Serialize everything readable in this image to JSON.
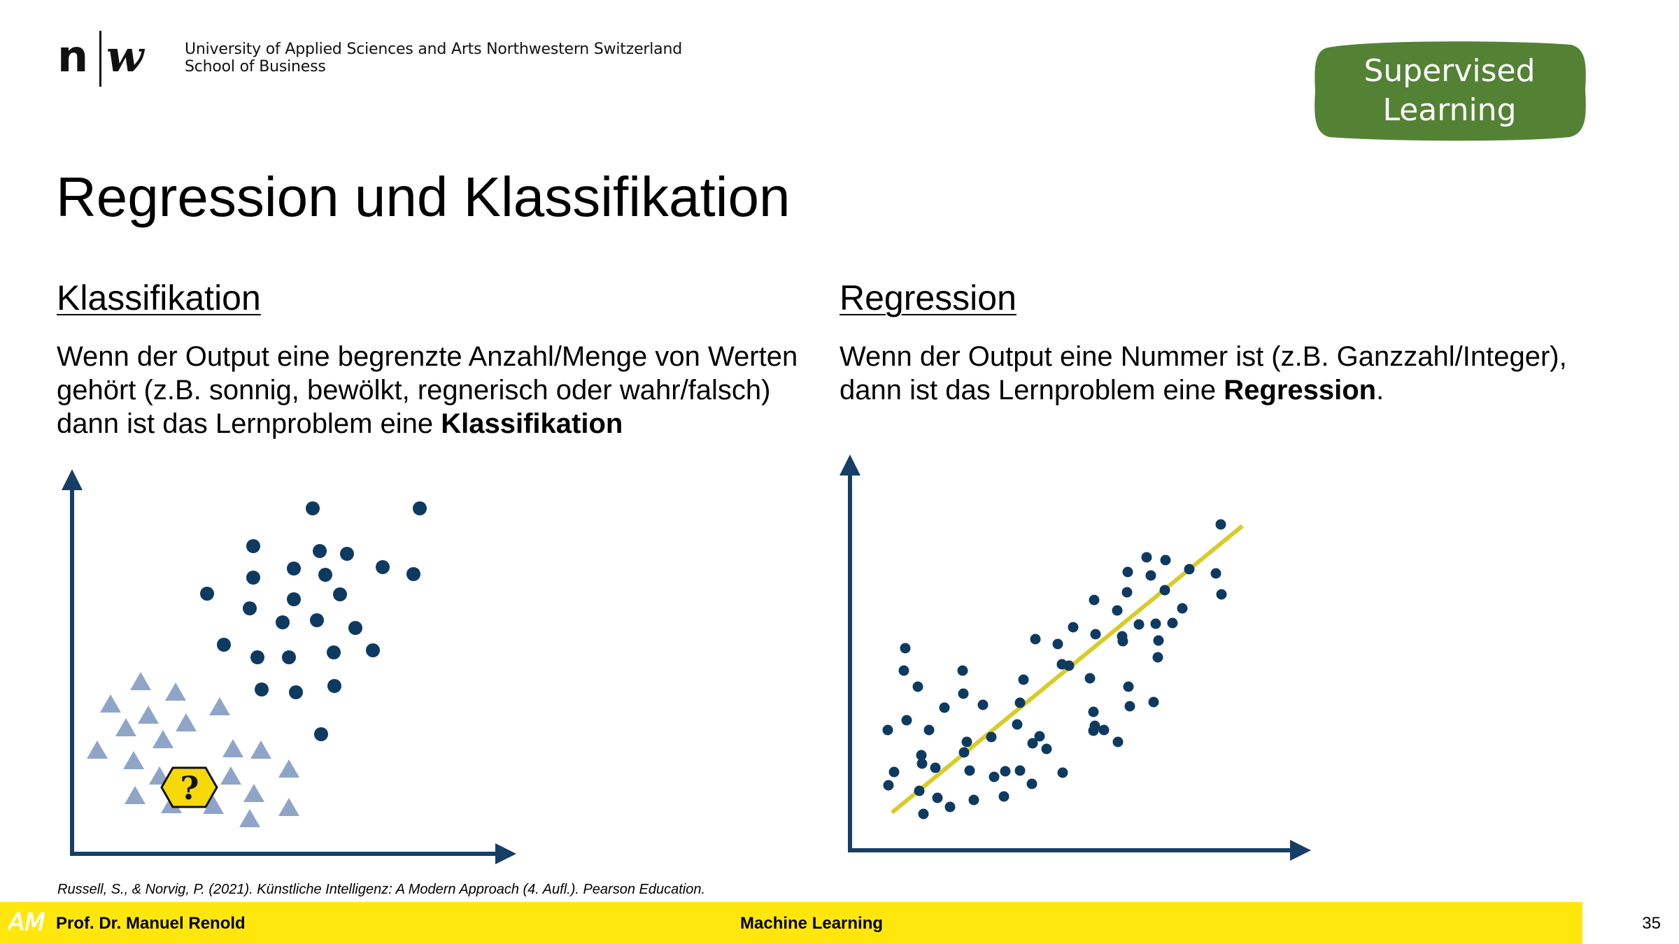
{
  "header": {
    "logo_text": "n|w",
    "university_line1": "University of Applied Sciences and Arts Northwestern Switzerland",
    "university_line2": "School of Business",
    "badge_line1": "Supervised",
    "badge_line2": "Learning",
    "badge_color": "#548235"
  },
  "slide": {
    "title": "Regression und Klassifikation"
  },
  "classification": {
    "heading": "Klassifikation",
    "text_plain": "Wenn der Output eine begrenzte Anzahl/Menge von Werten gehört (z.B. sonnig, bewölkt, regnerisch oder wahr/falsch) dann ist das Lernproblem eine ",
    "text_bold": "Klassifikation",
    "unknown_label": "?",
    "colors": {
      "axis": "#163e66",
      "circle": "#0e3a62",
      "triangle": "#8fa5c8",
      "unknown_fill": "#f5d90a"
    }
  },
  "regression": {
    "heading": "Regression",
    "text_plain": "Wenn der Output eine Nummer ist (z.B. Ganzzahl/Integer), dann ist das Lernproblem eine ",
    "text_bold": "Regression",
    "text_end": ".",
    "colors": {
      "axis": "#163e66",
      "point": "#0e3a62",
      "line": "#d8cc2a"
    }
  },
  "citation": "Russell, S., & Norvig, P. (2021). Künstliche Intelligenz: A Modern Approach (4. Aufl.). Pearson Education.",
  "footer": {
    "logo_text": "AM",
    "author": "Prof. Dr. Manuel Renold",
    "course": "Machine Learning",
    "page_number": "35",
    "color": "#ffe70e"
  }
}
